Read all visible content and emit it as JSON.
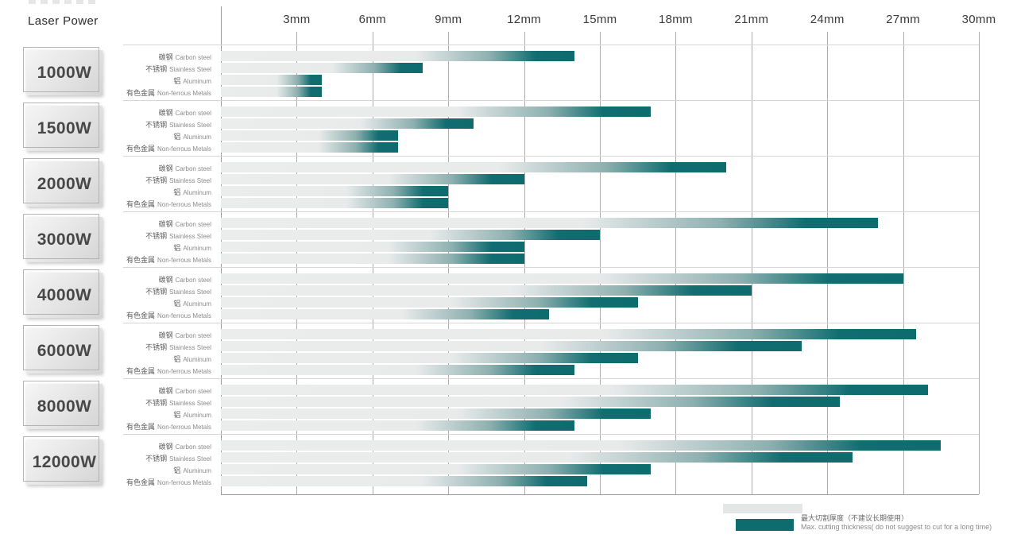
{
  "header": {
    "laser_power_label": "Laser Power"
  },
  "chart_data": {
    "type": "bar",
    "orientation": "horizontal",
    "unit": "mm",
    "xlim": [
      0,
      30
    ],
    "x_ticks": [
      3,
      6,
      9,
      12,
      15,
      18,
      21,
      24,
      27,
      30
    ],
    "x_tick_labels": [
      "3mm",
      "6mm",
      "9mm",
      "12mm",
      "15mm",
      "18mm",
      "21mm",
      "24mm",
      "27mm",
      "30mm"
    ],
    "category_axis_label": "Laser Power",
    "categories": [
      "1000W",
      "1500W",
      "2000W",
      "3000W",
      "4000W",
      "6000W",
      "8000W",
      "12000W"
    ],
    "series": [
      {
        "zh": "碳钢",
        "name": "Carbon steel",
        "values": [
          14,
          17,
          20,
          26,
          27,
          27.5,
          28,
          28.5
        ]
      },
      {
        "zh": "不锈钢",
        "name": "Stainless Steel",
        "values": [
          8,
          10,
          12,
          15,
          21,
          23,
          24.5,
          25
        ]
      },
      {
        "zh": "铝",
        "name": "Aluminum",
        "values": [
          4,
          7,
          9,
          12,
          16.5,
          16.5,
          17,
          17
        ]
      },
      {
        "zh": "有色金属",
        "name": "Non-ferrous Metals",
        "values": [
          4,
          7,
          9,
          12,
          13,
          14,
          14,
          14.5
        ]
      }
    ],
    "legend": {
      "zh": "最大切割厚度（不建议长期使用）",
      "en": "Max. cutting thickness( do not suggest to cut for a long time)"
    },
    "grid": true
  },
  "colors": {
    "bar_teal": "#0e6b6e",
    "bar_track": "#e9ebeb",
    "grid_line": "#ababab",
    "separator": "#d6d6d6",
    "button_text": "#474747"
  }
}
